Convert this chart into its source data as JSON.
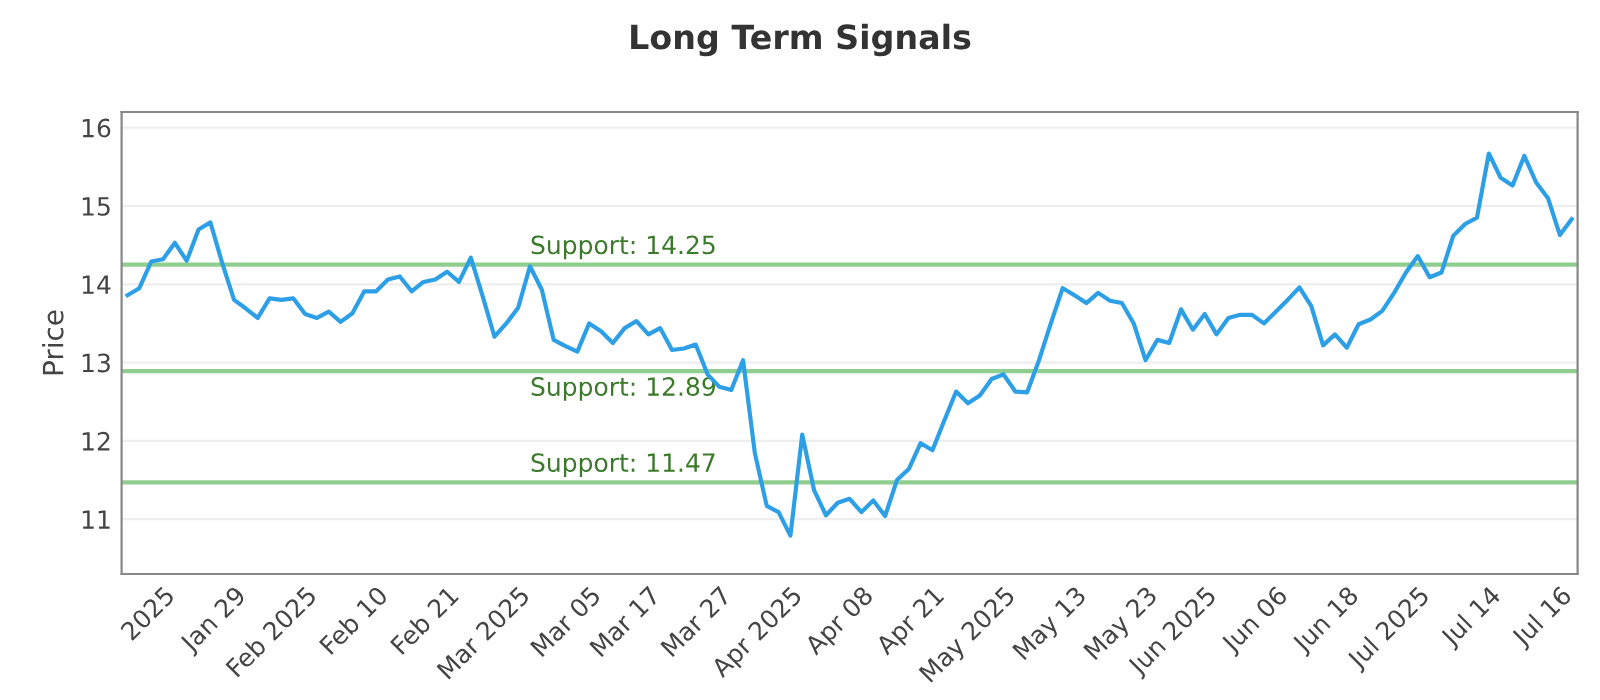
{
  "chart_data": {
    "type": "line",
    "title": "Long Term Signals",
    "ylabel": "Price",
    "categories": [
      null,
      null,
      null,
      "2025",
      null,
      null,
      null,
      null,
      null,
      "Jan 29",
      null,
      null,
      null,
      null,
      null,
      "Feb 2025",
      null,
      null,
      null,
      null,
      null,
      "Feb 10",
      null,
      null,
      null,
      null,
      null,
      "Feb 21",
      null,
      null,
      null,
      null,
      null,
      "Mar 2025",
      null,
      null,
      null,
      null,
      null,
      "Mar 05",
      null,
      null,
      null,
      null,
      "Mar 17",
      null,
      null,
      null,
      null,
      null,
      "Mar 27",
      null,
      null,
      null,
      null,
      null,
      "Apr 2025",
      null,
      null,
      null,
      null,
      null,
      "Apr 08",
      null,
      null,
      null,
      null,
      null,
      "Apr 21",
      null,
      null,
      null,
      null,
      null,
      "May 2025",
      null,
      null,
      null,
      null,
      null,
      "May 13",
      null,
      null,
      null,
      null,
      null,
      "May 23",
      null,
      null,
      null,
      null,
      "Jun 2025",
      null,
      null,
      null,
      null,
      null,
      "Jun 06",
      null,
      null,
      null,
      null,
      null,
      "Jun 18",
      null,
      null,
      null,
      null,
      null,
      "Jul 2025",
      null,
      null,
      null,
      null,
      null,
      "Jul 14",
      null,
      null,
      null,
      null,
      null,
      "Jul 16",
      null
    ],
    "series": [
      {
        "color": "#2d9fe6",
        "values": [
          13.86,
          13.95,
          14.29,
          14.32,
          14.53,
          14.3,
          14.7,
          14.79,
          14.27,
          13.8,
          13.69,
          13.57,
          13.82,
          13.8,
          13.82,
          13.62,
          13.57,
          13.65,
          13.52,
          13.63,
          13.91,
          13.91,
          14.06,
          14.1,
          13.91,
          14.03,
          14.06,
          14.16,
          14.03,
          14.34,
          13.85,
          13.33,
          13.5,
          13.7,
          14.23,
          13.93,
          13.29,
          13.21,
          13.14,
          13.5,
          13.4,
          13.25,
          13.44,
          13.53,
          13.36,
          13.44,
          13.16,
          13.18,
          13.23,
          12.85,
          12.69,
          12.65,
          13.03,
          11.84,
          11.17,
          11.09,
          10.79,
          12.08,
          11.37,
          11.05,
          11.21,
          11.26,
          11.09,
          11.24,
          11.04,
          11.5,
          11.64,
          11.97,
          11.88,
          12.26,
          12.63,
          12.48,
          12.58,
          12.79,
          12.85,
          12.63,
          12.62,
          13.03,
          13.5,
          13.95,
          13.86,
          13.76,
          13.89,
          13.79,
          13.76,
          13.5,
          13.03,
          13.29,
          13.25,
          13.68,
          13.42,
          13.62,
          13.36,
          13.57,
          13.61,
          13.61,
          13.5,
          13.65,
          13.8,
          13.96,
          13.72,
          13.22,
          13.36,
          13.19,
          13.49,
          13.55,
          13.66,
          13.89,
          14.15,
          14.36,
          14.09,
          14.15,
          14.62,
          14.77,
          14.85,
          15.67,
          15.36,
          15.26,
          15.64,
          15.3,
          15.1,
          14.63,
          14.83
        ]
      }
    ],
    "ylim": [
      10.3,
      16.2
    ],
    "yticks": [
      11,
      12,
      13,
      14,
      15,
      16
    ],
    "grid": "y",
    "ref_lines": [
      {
        "axis": "y",
        "value": 14.25,
        "label": "Support: 14.25",
        "color": "#8fce8f"
      },
      {
        "axis": "y",
        "value": 12.89,
        "label": "Support: 12.89",
        "color": "#8fce8f"
      },
      {
        "axis": "y",
        "value": 11.47,
        "label": "Support: 11.47",
        "color": "#8fce8f"
      }
    ]
  }
}
